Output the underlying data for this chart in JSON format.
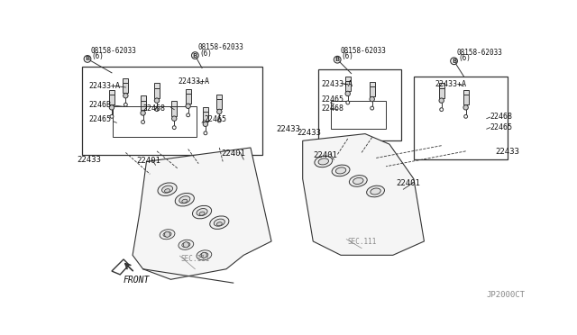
{
  "bg_color": "#ffffff",
  "line_color": "#333333",
  "text_color": "#111111",
  "gray_color": "#888888",
  "light_gray": "#cccccc",
  "watermark": "JP2000CT",
  "figsize": [
    6.4,
    3.72
  ],
  "dpi": 100,
  "labels": {
    "22401": "22401",
    "22433": "22433",
    "22433A": "22433+A",
    "22465": "22465",
    "22468": "22468",
    "22468B": "2246B",
    "bolt": "08158-62033",
    "bolt6": "(6)",
    "B": "B",
    "SEC111": "SEC.111",
    "FRONT": "FRONT"
  }
}
